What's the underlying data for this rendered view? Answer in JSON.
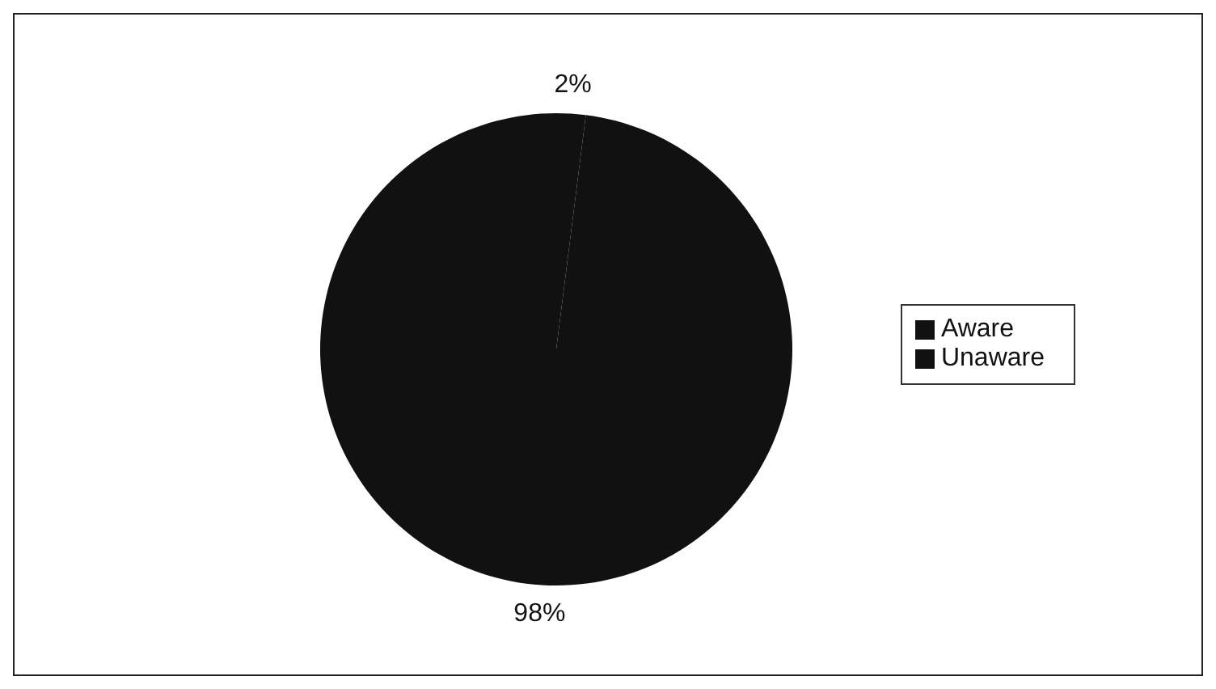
{
  "chart_data": {
    "type": "pie",
    "categories": [
      "Aware",
      "Unaware"
    ],
    "values": [
      2,
      98
    ],
    "colors": [
      "#111111",
      "#111111"
    ],
    "value_labels": [
      "2%",
      "98%"
    ],
    "legend": "right"
  }
}
